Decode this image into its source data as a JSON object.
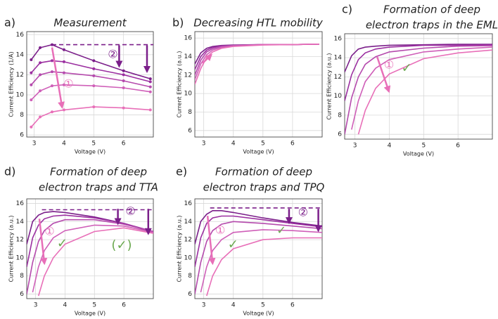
{
  "chart_data": [
    {
      "type": "line",
      "label": "a)",
      "title": [
        "Measurement"
      ],
      "xlabel": "Voltage (V)",
      "ylabel": "Current Efficiency (1/A)",
      "x": [
        2.9,
        3.2,
        3.6,
        4,
        5,
        6,
        6.9
      ],
      "xlim": [
        2.75,
        7
      ],
      "xticks": [
        3,
        4,
        5,
        6
      ],
      "ylim": [
        5.8,
        16.3
      ],
      "yticks": [
        6,
        8,
        10,
        12,
        14,
        16
      ],
      "grid": true,
      "markers": true,
      "reference_line": 15,
      "annotations": [
        "①",
        "②"
      ],
      "series": [
        {
          "color": "#7b1f8a",
          "values": [
            13.5,
            14.7,
            15.0,
            14.5,
            13.4,
            12.4,
            11.6
          ]
        },
        {
          "color": "#9b2fa0",
          "values": [
            12.2,
            13.2,
            13.4,
            13.3,
            12.6,
            12.0,
            11.3
          ]
        },
        {
          "color": "#b54aad",
          "values": [
            11.0,
            12.0,
            12.3,
            12.2,
            11.9,
            11.4,
            10.8
          ]
        },
        {
          "color": "#cf5fb8",
          "values": [
            9.5,
            10.4,
            10.9,
            11.0,
            10.9,
            10.7,
            10.3
          ]
        },
        {
          "color": "#e86fb8",
          "values": [
            6.8,
            7.8,
            8.3,
            8.5,
            8.8,
            8.7,
            8.5
          ]
        }
      ]
    },
    {
      "type": "line",
      "label": "b)",
      "title": [
        "Decreasing HTL mobility"
      ],
      "xlabel": "Voltage (V)",
      "ylabel": "Current Efficiency (a.u.)",
      "x": [
        2.7,
        2.9,
        3.1,
        3.3,
        3.6,
        4,
        5,
        6,
        6.9
      ],
      "xlim": [
        2.7,
        7
      ],
      "xticks": [
        3,
        4,
        5,
        6
      ],
      "ylim": [
        5.3,
        16.7
      ],
      "yticks": [
        6,
        8,
        10,
        12,
        14,
        16
      ],
      "grid": true,
      "series": [
        {
          "color": "#7b1f8a",
          "values": [
            13.2,
            14.4,
            14.9,
            15.1,
            15.2,
            15.25,
            15.3,
            15.3,
            15.35
          ]
        },
        {
          "color": "#9b2fa0",
          "values": [
            12.6,
            14.0,
            14.7,
            15.0,
            15.15,
            15.2,
            15.3,
            15.3,
            15.35
          ]
        },
        {
          "color": "#b54aad",
          "values": [
            12.0,
            13.6,
            14.5,
            14.85,
            15.1,
            15.2,
            15.3,
            15.3,
            15.35
          ]
        },
        {
          "color": "#cf5fb8",
          "values": [
            11.5,
            13.2,
            14.2,
            14.7,
            15.0,
            15.15,
            15.3,
            15.3,
            15.35
          ]
        },
        {
          "color": "#e86fb8",
          "values": [
            11.0,
            12.7,
            13.9,
            14.5,
            14.9,
            15.1,
            15.25,
            15.3,
            15.35
          ]
        }
      ]
    },
    {
      "type": "line",
      "label": "c)",
      "title": [
        "Formation of deep",
        "electron traps in the EML"
      ],
      "xlabel": "Voltage (V)",
      "ylabel": "Current Efficiency (a.u.)",
      "x": [
        2.7,
        2.9,
        3.1,
        3.3,
        3.6,
        4,
        5,
        6,
        7
      ],
      "xlim": [
        2.7,
        7
      ],
      "xticks": [
        3,
        4,
        5,
        6
      ],
      "ylim": [
        5.5,
        16.5
      ],
      "yticks": [
        6,
        8,
        10,
        12,
        14,
        16
      ],
      "grid": true,
      "annotations": [
        "①",
        "✓"
      ],
      "series": [
        {
          "color": "#7b1f8a",
          "values": [
            12.5,
            14.2,
            14.9,
            15.1,
            15.2,
            15.3,
            15.35,
            15.4,
            15.4
          ]
        },
        {
          "color": "#9b2fa0",
          "values": [
            9.5,
            12.2,
            13.8,
            14.5,
            14.9,
            15.1,
            15.3,
            15.3,
            15.35
          ]
        },
        {
          "color": "#b54aad",
          "values": [
            6.0,
            9.8,
            12.0,
            13.3,
            14.1,
            14.6,
            15.0,
            15.2,
            15.25
          ]
        },
        {
          "color": "#cf5fb8",
          "values": [
            null,
            6.5,
            9.5,
            11.5,
            12.9,
            13.8,
            14.6,
            14.9,
            15.1
          ]
        },
        {
          "color": "#e86fb8",
          "values": [
            null,
            null,
            6.0,
            8.5,
            10.8,
            12.3,
            13.9,
            14.5,
            14.8
          ]
        }
      ]
    },
    {
      "type": "line",
      "label": "d)",
      "title": [
        "Formation of deep",
        "electron traps and TTA"
      ],
      "xlabel": "Voltage (V)",
      "ylabel": "Current Efficiency (a.u.)",
      "x": [
        2.7,
        2.9,
        3.1,
        3.3,
        3.6,
        4,
        5,
        6,
        7
      ],
      "xlim": [
        2.7,
        7
      ],
      "xticks": [
        3,
        4,
        5,
        6
      ],
      "ylim": [
        5.5,
        16.5
      ],
      "yticks": [
        6,
        8,
        10,
        12,
        14,
        16
      ],
      "grid": true,
      "reference_line": 15.3,
      "annotations": [
        "①",
        "②",
        "✓",
        "(✓)"
      ],
      "series": [
        {
          "color": "#7b1f8a",
          "values": [
            11.5,
            14.0,
            14.7,
            15.0,
            15.1,
            15.0,
            14.5,
            13.8,
            12.8
          ]
        },
        {
          "color": "#9b2fa0",
          "values": [
            9.0,
            12.2,
            13.6,
            14.3,
            14.6,
            14.7,
            14.4,
            13.8,
            12.9
          ]
        },
        {
          "color": "#b54aad",
          "values": [
            6.0,
            9.5,
            11.8,
            13.0,
            13.8,
            14.2,
            14.2,
            13.7,
            12.9
          ]
        },
        {
          "color": "#cf5fb8",
          "values": [
            null,
            6.2,
            9.0,
            10.8,
            12.2,
            13.0,
            13.6,
            13.5,
            12.8
          ]
        },
        {
          "color": "#e86fb8",
          "values": [
            null,
            null,
            5.8,
            8.0,
            10.0,
            11.5,
            12.9,
            13.3,
            12.7
          ]
        }
      ]
    },
    {
      "type": "line",
      "label": "e)",
      "title": [
        "Formation of deep",
        "electron traps and TPQ"
      ],
      "xlabel": "Voltage (V)",
      "ylabel": "Current Efficiency (a.u.)",
      "x": [
        2.7,
        2.9,
        3.1,
        3.3,
        3.6,
        4,
        5,
        6,
        7
      ],
      "xlim": [
        2.7,
        7
      ],
      "xticks": [
        3,
        4,
        5,
        6
      ],
      "ylim": [
        5.5,
        16.5
      ],
      "yticks": [
        6,
        8,
        10,
        12,
        14,
        16
      ],
      "grid": true,
      "reference_line": 15.5,
      "annotations": [
        "①",
        "②",
        "✓",
        "✓"
      ],
      "series": [
        {
          "color": "#7b1f8a",
          "values": [
            11.5,
            14.0,
            14.8,
            15.2,
            15.2,
            15.0,
            14.4,
            13.9,
            13.5
          ]
        },
        {
          "color": "#9b2fa0",
          "values": [
            9.0,
            12.2,
            13.8,
            14.4,
            14.6,
            14.6,
            14.2,
            13.8,
            13.4
          ]
        },
        {
          "color": "#b54aad",
          "values": [
            6.0,
            9.5,
            11.8,
            13.0,
            13.7,
            14.0,
            13.8,
            13.5,
            13.2
          ]
        },
        {
          "color": "#cf5fb8",
          "values": [
            null,
            6.2,
            9.0,
            10.8,
            12.0,
            12.8,
            13.1,
            13.0,
            12.8
          ]
        },
        {
          "color": "#e86fb8",
          "values": [
            null,
            null,
            5.8,
            8.0,
            9.8,
            11.0,
            12.0,
            12.2,
            12.2
          ]
        }
      ]
    }
  ]
}
